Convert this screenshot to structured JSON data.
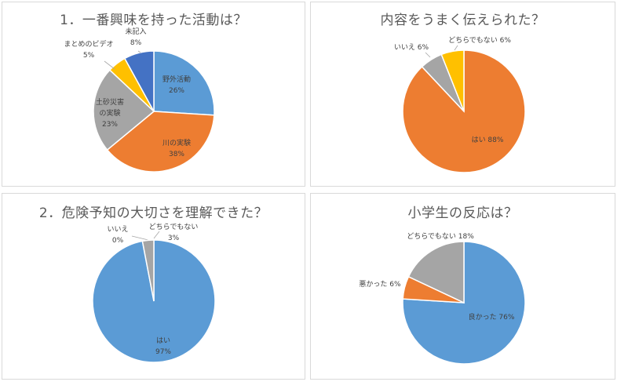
{
  "chart_data": [
    {
      "type": "pie",
      "title": "1．一番興味を持った活動は？",
      "slices": [
        {
          "label": "野外活動",
          "value": 26,
          "display": "26%",
          "color": "#5B9BD5"
        },
        {
          "label": "川の実験",
          "value": 38,
          "display": "38%",
          "color": "#ED7D31"
        },
        {
          "label": "土砂災害の実験",
          "value": 23,
          "display": "23%",
          "color": "#A5A5A5"
        },
        {
          "label": "まとめのビデオ",
          "value": 5,
          "display": "5%",
          "color": "#FFC000"
        },
        {
          "label": "未記入",
          "value": 8,
          "display": "8%",
          "color": "#4472C4"
        }
      ]
    },
    {
      "type": "pie",
      "title": "内容をうまく伝えられた？",
      "slices": [
        {
          "label": "はい",
          "value": 88,
          "display": "88%",
          "color": "#ED7D31"
        },
        {
          "label": "いいえ",
          "value": 6,
          "display": "6%",
          "color": "#A5A5A5"
        },
        {
          "label": "どちらでもない",
          "value": 6,
          "display": "6%",
          "color": "#FFC000"
        }
      ]
    },
    {
      "type": "pie",
      "title": "2．危険予知の大切さを理解できた？",
      "slices": [
        {
          "label": "はい",
          "value": 97,
          "display": "97%",
          "color": "#5B9BD5"
        },
        {
          "label": "いいえ",
          "value": 0,
          "display": "0%",
          "color": "#ED7D31"
        },
        {
          "label": "どちらでもない",
          "value": 3,
          "display": "3%",
          "color": "#A5A5A5"
        }
      ]
    },
    {
      "type": "pie",
      "title": "小学生の反応は？",
      "slices": [
        {
          "label": "良かった",
          "value": 76,
          "display": "76%",
          "color": "#5B9BD5"
        },
        {
          "label": "悪かった",
          "value": 6,
          "display": "6%",
          "color": "#ED7D31"
        },
        {
          "label": "どちらでもない",
          "value": 18,
          "display": "18%",
          "color": "#A5A5A5"
        }
      ]
    }
  ]
}
